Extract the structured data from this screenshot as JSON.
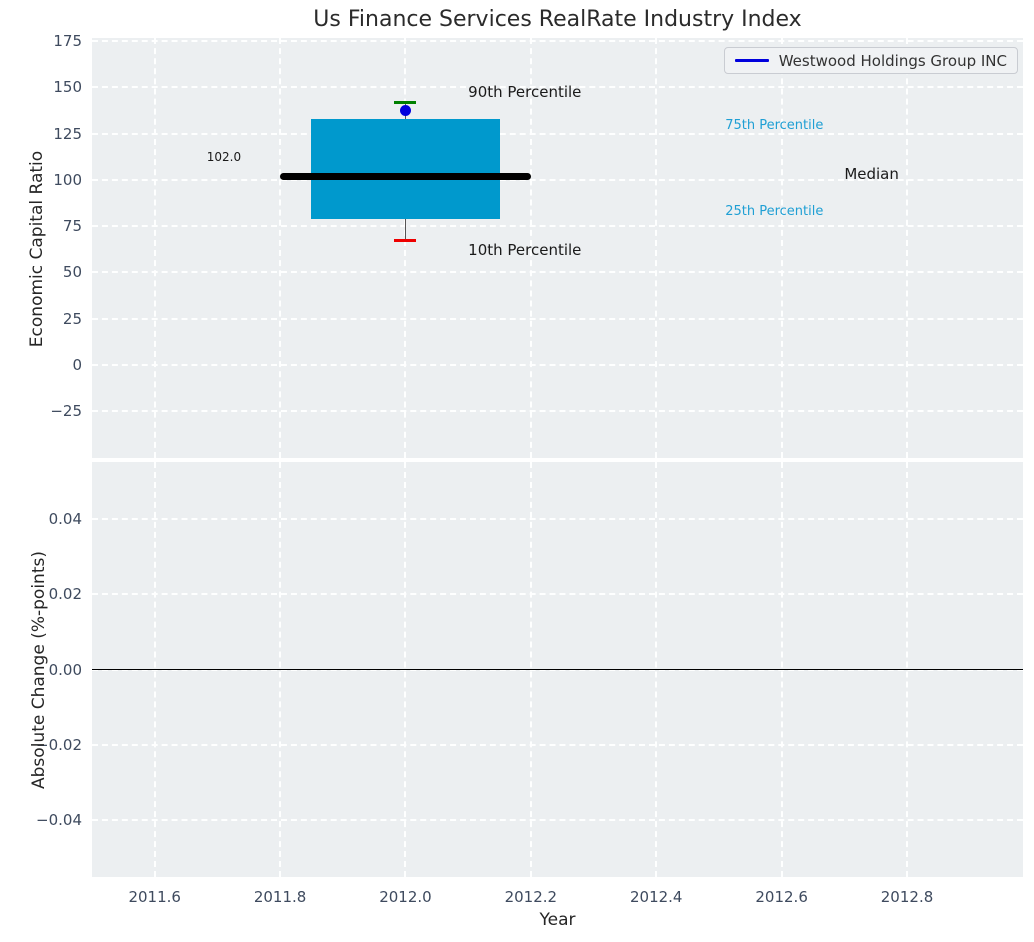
{
  "figure": {
    "title": "Us Finance Services RealRate Industry Index",
    "top_ylabel": "Economic Capital Ratio",
    "bottom_ylabel": "Absolute Change (%-points)",
    "xlabel": "Year"
  },
  "legend": {
    "label": "Westwood Holdings Group INC",
    "line_color": "#0000dd"
  },
  "colors": {
    "plot_background": "#eceff1",
    "grid": "#ffffff",
    "tick_label": "#3e4a5e",
    "box_fill": "#0099cd",
    "median_line": "#000000",
    "p90_cap": "#008000",
    "p10_cap": "#ee0000",
    "whisker": "#555555",
    "company_dot": "#0000dd",
    "zero_line": "#000000",
    "percentile_text": "#1f9fd4",
    "annotation_text": "#1a1a1a"
  },
  "chart_data": [
    {
      "type": "box",
      "title": "Us Finance Services RealRate Industry Index",
      "ylabel": "Economic Capital Ratio",
      "xlim": [
        2011.5,
        2012.985
      ],
      "ylim": [
        -50.4,
        176.7
      ],
      "grid": true,
      "legend_position": "upper right",
      "yticks": [
        {
          "v": 175,
          "label": "175"
        },
        {
          "v": 150,
          "label": "150"
        },
        {
          "v": 125,
          "label": "125"
        },
        {
          "v": 100,
          "label": "100"
        },
        {
          "v": 75,
          "label": "75"
        },
        {
          "v": 50,
          "label": "50"
        },
        {
          "v": 25,
          "label": "25"
        },
        {
          "v": 0,
          "label": "0"
        },
        {
          "v": -25,
          "label": "−25"
        }
      ],
      "box": {
        "x": 2012.0,
        "box_halfwidth_years": 0.15,
        "median_halfwidth_years": 0.2,
        "p90": 142,
        "p75": 133,
        "median": 102,
        "p25": 79,
        "p10": 67,
        "median_label": "102.0"
      },
      "series": [
        {
          "name": "Westwood Holdings Group INC",
          "x": [
            2012.0
          ],
          "y": [
            137.5
          ],
          "marker": "circle"
        }
      ],
      "annotations": [
        {
          "name": "annotation-90th-percentile",
          "text": "90th Percentile",
          "x": 2012.1,
          "y": 152.0,
          "size": 15,
          "colorKey": "annotation_text"
        },
        {
          "name": "annotation-10th-percentile",
          "text": "10th Percentile",
          "x": 2012.1,
          "y": 66.4,
          "size": 15,
          "colorKey": "annotation_text"
        },
        {
          "name": "annotation-75th-percentile",
          "text": "75th Percentile",
          "x": 2012.51,
          "y": 133.0,
          "size": 13,
          "colorKey": "percentile_text"
        },
        {
          "name": "annotation-25th-percentile",
          "text": "25th Percentile",
          "x": 2012.51,
          "y": 86.4,
          "size": 13,
          "colorKey": "percentile_text"
        },
        {
          "name": "annotation-median",
          "text": "Median",
          "x": 2012.7,
          "y": 107.5,
          "size": 15,
          "colorKey": "annotation_text"
        },
        {
          "name": "annotation-median-value",
          "text": "102.0",
          "x": 2011.683,
          "y": 115.6,
          "size": 12,
          "colorKey": "annotation_text"
        }
      ]
    },
    {
      "type": "line",
      "ylabel": "Absolute Change (%-points)",
      "xlabel": "Year",
      "xlim": [
        2011.5,
        2012.985
      ],
      "ylim": [
        -0.0552,
        0.0552
      ],
      "grid": true,
      "zero_line": true,
      "yticks": [
        {
          "v": 0.04,
          "label": "0.04"
        },
        {
          "v": 0.02,
          "label": "0.02"
        },
        {
          "v": 0.0,
          "label": "0.00"
        },
        {
          "v": -0.02,
          "label": "−0.02"
        },
        {
          "v": -0.04,
          "label": "−0.04"
        }
      ],
      "xticks": [
        {
          "v": 2011.6,
          "label": "2011.6"
        },
        {
          "v": 2011.8,
          "label": "2011.8"
        },
        {
          "v": 2012.0,
          "label": "2012.0"
        },
        {
          "v": 2012.2,
          "label": "2012.2"
        },
        {
          "v": 2012.4,
          "label": "2012.4"
        },
        {
          "v": 2012.6,
          "label": "2012.6"
        },
        {
          "v": 2012.8,
          "label": "2012.8"
        }
      ],
      "series": []
    }
  ]
}
